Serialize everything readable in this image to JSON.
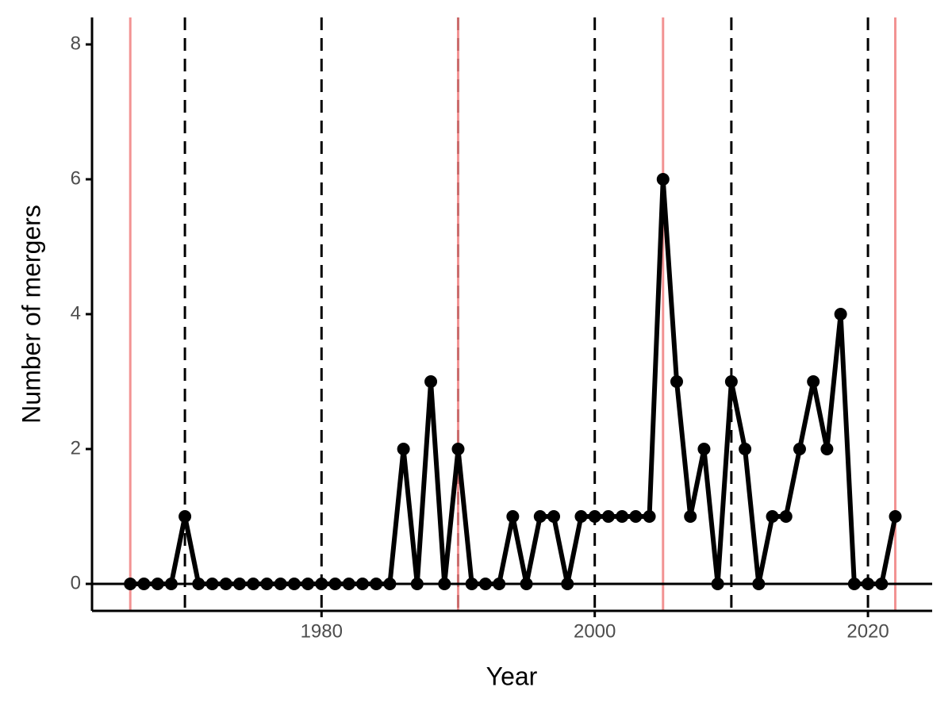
{
  "chart_data": {
    "type": "line",
    "x_label": "Year",
    "y_label": "Number of mergers",
    "x": [
      1966,
      1967,
      1968,
      1969,
      1970,
      1971,
      1972,
      1973,
      1974,
      1975,
      1976,
      1977,
      1978,
      1979,
      1980,
      1981,
      1982,
      1983,
      1984,
      1985,
      1986,
      1987,
      1988,
      1989,
      1990,
      1991,
      1992,
      1993,
      1994,
      1995,
      1996,
      1997,
      1998,
      1999,
      2000,
      2001,
      2002,
      2003,
      2004,
      2005,
      2006,
      2007,
      2008,
      2009,
      2010,
      2011,
      2012,
      2013,
      2014,
      2015,
      2016,
      2017,
      2018,
      2019,
      2020,
      2021,
      2022
    ],
    "values": [
      0,
      0,
      0,
      0,
      1,
      0,
      0,
      0,
      0,
      0,
      0,
      0,
      0,
      0,
      0,
      0,
      0,
      0,
      0,
      0,
      2,
      0,
      3,
      0,
      2,
      0,
      0,
      0,
      1,
      0,
      1,
      1,
      0,
      1,
      1,
      1,
      1,
      1,
      1,
      6,
      3,
      1,
      2,
      0,
      3,
      2,
      0,
      1,
      1,
      2,
      3,
      2,
      4,
      0,
      0,
      0,
      1
    ],
    "color": "#000000",
    "xlim": [
      1963.2,
      2024.7
    ],
    "ylim": [
      -0.4,
      8.4
    ],
    "xticks": [
      1980,
      2000,
      2020
    ],
    "yticks": [
      0,
      2,
      4,
      6,
      8
    ],
    "hline": 0,
    "vlines_dashed": [
      1970,
      1980,
      1990,
      2000,
      2010,
      2020
    ],
    "vlines_dashed_color": "#000000",
    "vlines_solid": [
      1966,
      1990,
      2005,
      2022
    ],
    "vlines_solid_color": "#f08080",
    "grid": false
  }
}
